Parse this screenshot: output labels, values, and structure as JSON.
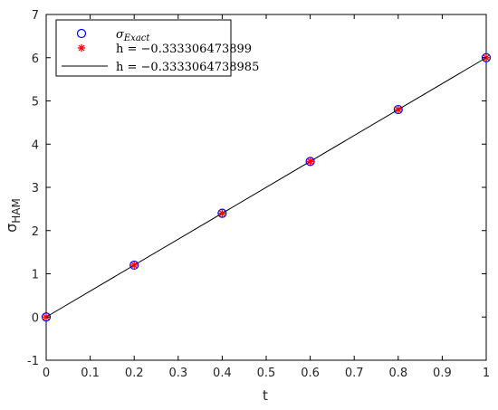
{
  "chart_data": {
    "type": "line",
    "title": "",
    "xlabel": "t",
    "ylabel": "σ",
    "ylabel_sub": "HAM",
    "xlim": [
      0,
      1
    ],
    "ylim": [
      -1,
      7
    ],
    "xticks": [
      0,
      0.1,
      0.2,
      0.3,
      0.4,
      0.5,
      0.6,
      0.7,
      0.8,
      0.9,
      1
    ],
    "xtick_labels": [
      "0",
      "0.1",
      "0.2",
      "0.3",
      "0.4",
      "0.5",
      "0.6",
      "0.7",
      "0.8",
      "0.9",
      "1"
    ],
    "yticks": [
      -1,
      0,
      1,
      2,
      3,
      4,
      5,
      6,
      7
    ],
    "ytick_labels": [
      "-1",
      "0",
      "1",
      "2",
      "3",
      "4",
      "5",
      "6",
      "7"
    ],
    "grid": false,
    "legend_position": "top-left",
    "series": [
      {
        "name": "σ",
        "name_sub": "Exact",
        "marker": "circle",
        "color": "#0000ff",
        "x": [
          0,
          0.2,
          0.4,
          0.6,
          0.8,
          1
        ],
        "y": [
          0,
          1.2,
          2.4,
          3.6,
          4.8,
          6
        ]
      },
      {
        "name": "h = −0.333306473899",
        "marker": "asterisk",
        "color": "#ff0000",
        "x": [
          0,
          0.2,
          0.4,
          0.6,
          0.8,
          1
        ],
        "y": [
          0,
          1.2,
          2.4,
          3.6,
          4.8,
          6
        ]
      },
      {
        "name": "h = −0.3333064738985",
        "marker": "line",
        "color": "#000000",
        "x": [
          0,
          1
        ],
        "y": [
          0,
          6
        ]
      }
    ]
  }
}
